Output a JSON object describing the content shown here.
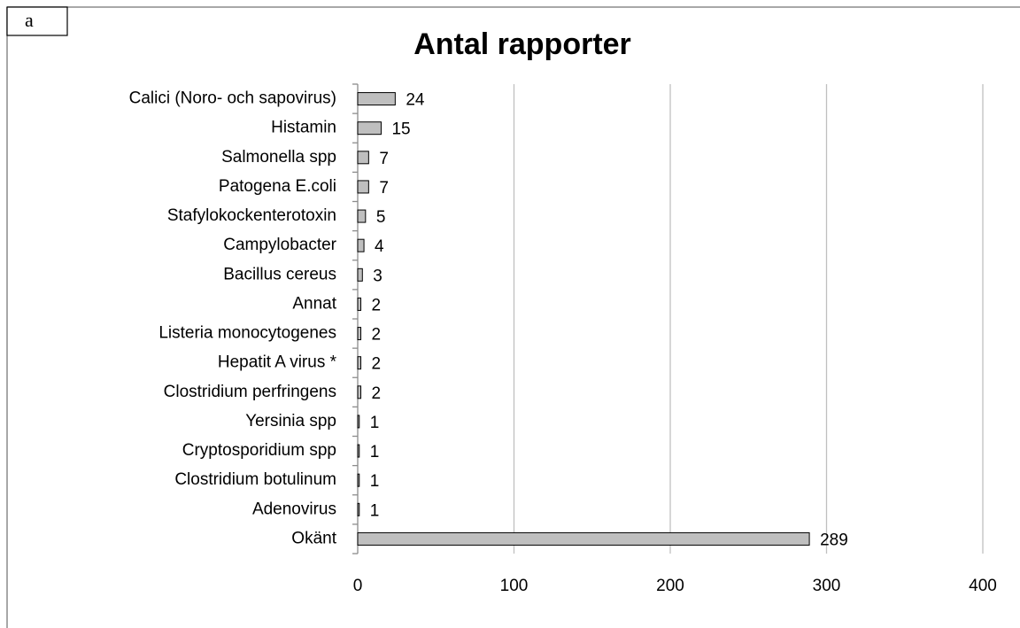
{
  "panel_label": "a",
  "chart_data": {
    "type": "bar",
    "orientation": "horizontal",
    "title": "Antal rapporter",
    "categories": [
      "Calici (Noro- och sapovirus)",
      "Histamin",
      "Salmonella spp",
      "Patogena E.coli",
      "Stafylokockenterotoxin",
      "Campylobacter",
      "Bacillus cereus",
      "Annat",
      "Listeria monocytogenes",
      "Hepatit A virus *",
      "Clostridium perfringens",
      "Yersinia spp",
      "Cryptosporidium spp",
      "Clostridium botulinum",
      "Adenovirus",
      "Okänt"
    ],
    "values": [
      24,
      15,
      7,
      7,
      5,
      4,
      3,
      2,
      2,
      2,
      2,
      1,
      1,
      1,
      1,
      289
    ],
    "color": "#bfbfbf",
    "xlim": [
      0,
      400
    ],
    "xticks": [
      0,
      100,
      200,
      300,
      400
    ],
    "grid": true
  }
}
